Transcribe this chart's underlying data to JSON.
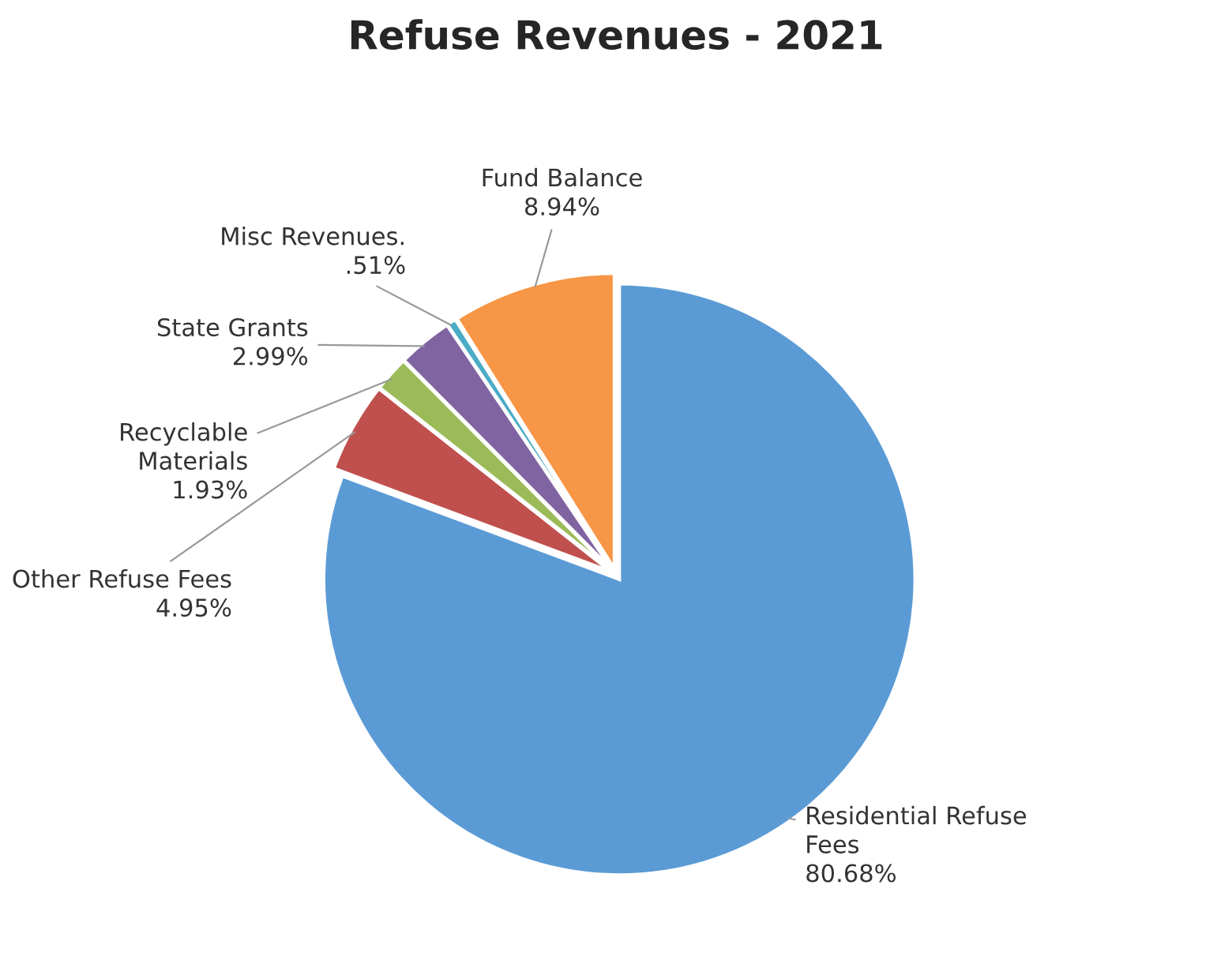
{
  "chart_data": {
    "type": "pie",
    "title": "Refuse Revenues - 2021",
    "categories": [
      "Residential Refuse\nFees",
      "Other Refuse Fees",
      "Recyclable\nMaterials",
      "State Grants",
      "Misc Revenues.",
      "Fund Balance"
    ],
    "values": [
      80.68,
      4.95,
      1.93,
      2.99,
      0.51,
      8.94
    ],
    "value_labels": [
      "80.68%",
      "4.95%",
      "1.93%",
      "2.99%",
      ".51%",
      "8.94%"
    ],
    "colors": [
      "#5b9bd5",
      "#c0504d",
      "#9bbb59",
      "#8064a2",
      "#4bacc6",
      "#f79646"
    ]
  }
}
